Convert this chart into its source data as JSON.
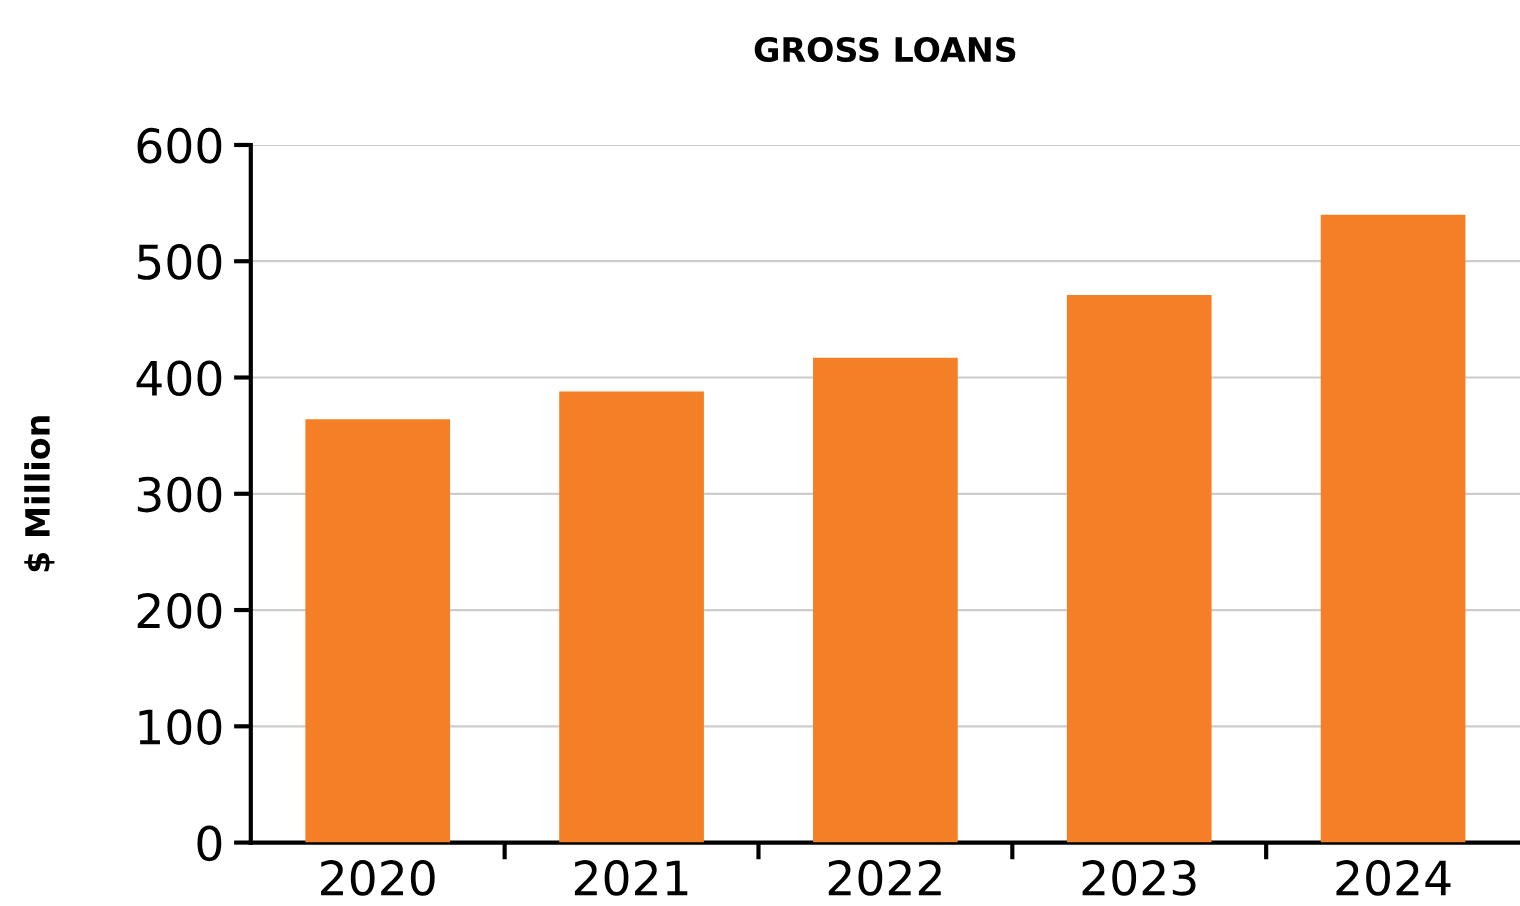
{
  "chart_data": {
    "type": "bar",
    "title": "GROSS LOANS",
    "ylabel": "$ Million",
    "categories": [
      "2020",
      "2021",
      "2022",
      "2023",
      "2024"
    ],
    "values": [
      364,
      388,
      417,
      471,
      540
    ],
    "color": "#f47f26",
    "ylim": [
      0,
      600
    ],
    "yticks": [
      0,
      100,
      200,
      300,
      400,
      500,
      600
    ],
    "grid": "y"
  }
}
